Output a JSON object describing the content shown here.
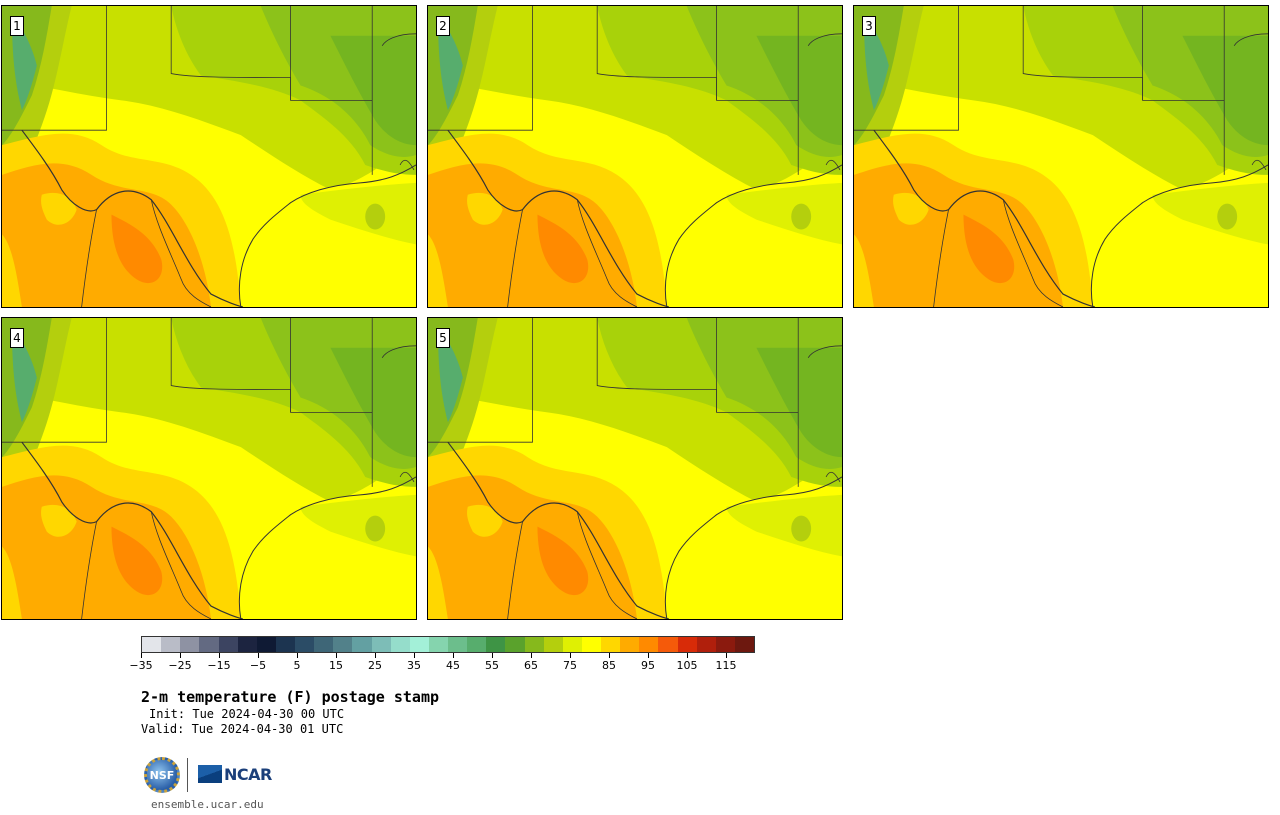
{
  "panels": [
    {
      "label": "1"
    },
    {
      "label": "2"
    },
    {
      "label": "3"
    },
    {
      "label": "4"
    },
    {
      "label": "5"
    }
  ],
  "colorbar": {
    "colors": [
      "#e3e5ea",
      "#b9bcc7",
      "#8e92a3",
      "#636a82",
      "#3c4461",
      "#1c2440",
      "#0f1a34",
      "#1c3450",
      "#2b4c66",
      "#3e6677",
      "#52818a",
      "#63a0a2",
      "#7dbdb7",
      "#95ddcb",
      "#a3f0d8",
      "#85d4ae",
      "#6cbe8c",
      "#57ad6d",
      "#3e9445",
      "#5aa22c",
      "#86b91c",
      "#b4cf0d",
      "#dff003",
      "#ffff00",
      "#ffd700",
      "#ffab00",
      "#ff8a00",
      "#f55a0a",
      "#d82b08",
      "#b01f0c",
      "#8b1a0e",
      "#6d180f"
    ],
    "ticks": [
      "−35",
      "−25",
      "−15",
      "−5",
      "5",
      "15",
      "25",
      "35",
      "45",
      "55",
      "65",
      "75",
      "85",
      "95",
      "105",
      "115"
    ]
  },
  "title": "2-m temperature (F) postage stamp",
  "init": "Init: Tue 2024-04-30 00 UTC",
  "valid": "Valid: Tue 2024-04-30 01 UTC",
  "logos": {
    "nsf": "NSF",
    "ncar": "NCAR"
  },
  "url": "ensemble.ucar.edu"
}
